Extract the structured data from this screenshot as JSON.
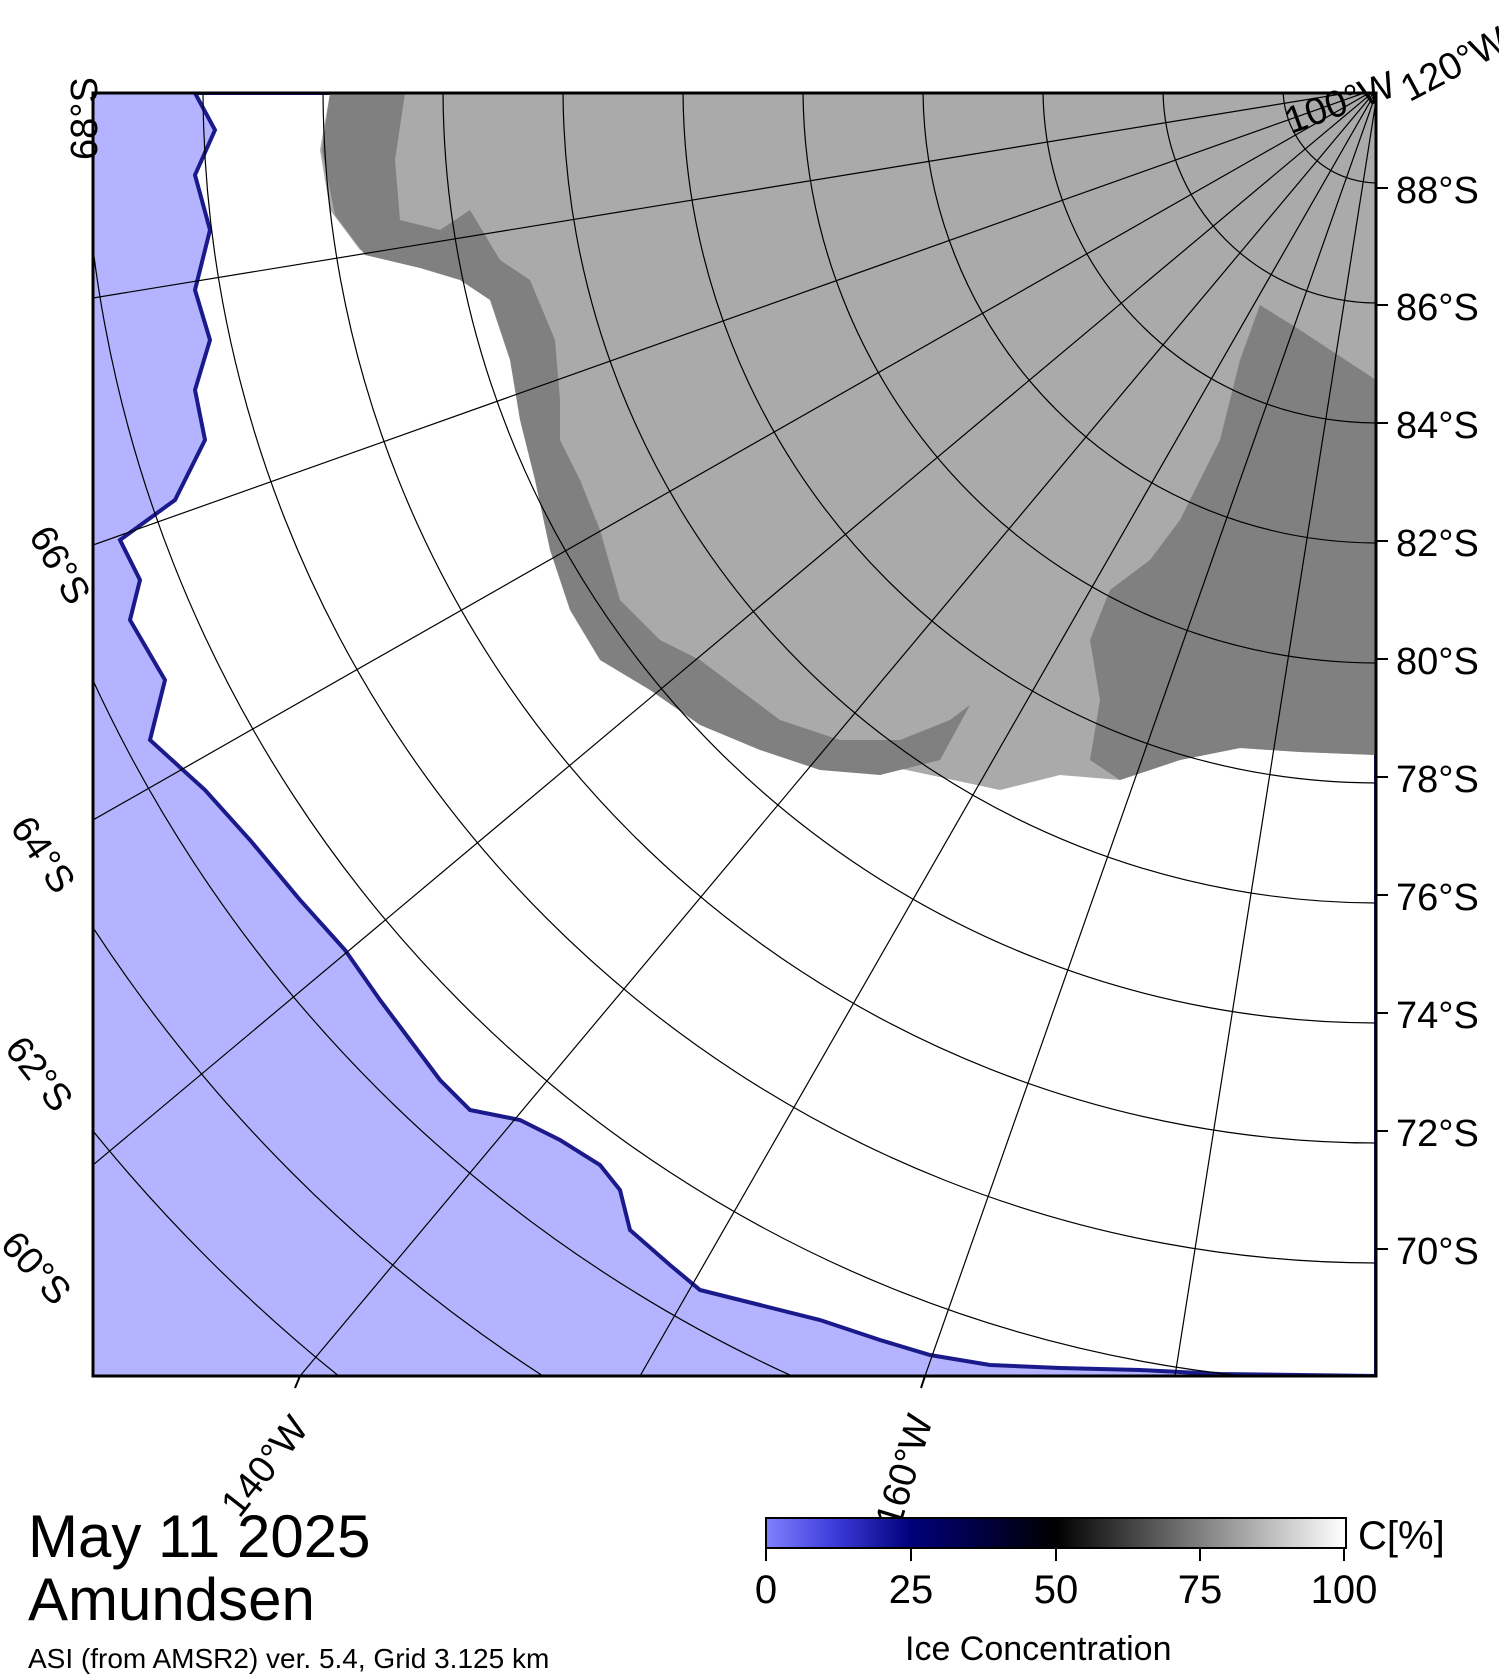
{
  "title": {
    "date": "May 11 2025",
    "region": "Amundsen",
    "credit": "ASI (from AMSR2) ver. 5.4,  Grid 3.125 km"
  },
  "map": {
    "colors": {
      "ocean": "#b3b3ff",
      "ice": "#ffffff",
      "land": "#aaaaaa",
      "ice_shelf": "#808080",
      "ice_edge": "#2020c0"
    },
    "lat_labels_right": [
      "88°S",
      "86°S",
      "84°S",
      "82°S",
      "80°S",
      "78°S",
      "76°S",
      "74°S",
      "72°S",
      "70°S"
    ],
    "lat_labels_left": [
      "68°S",
      "66°S",
      "64°S",
      "62°S",
      "60°S"
    ],
    "lon_labels_top": [
      "100°W",
      "120°W"
    ],
    "lon_labels_bottom": [
      "140°W",
      "160°W"
    ]
  },
  "colorbar": {
    "title": "Ice Concentration",
    "unit": "C[%]",
    "ticks": [
      "0",
      "25",
      "50",
      "75",
      "100"
    ],
    "colors": [
      "#7f7fff",
      "#00007a",
      "#000000",
      "#808080",
      "#ffffff"
    ]
  }
}
